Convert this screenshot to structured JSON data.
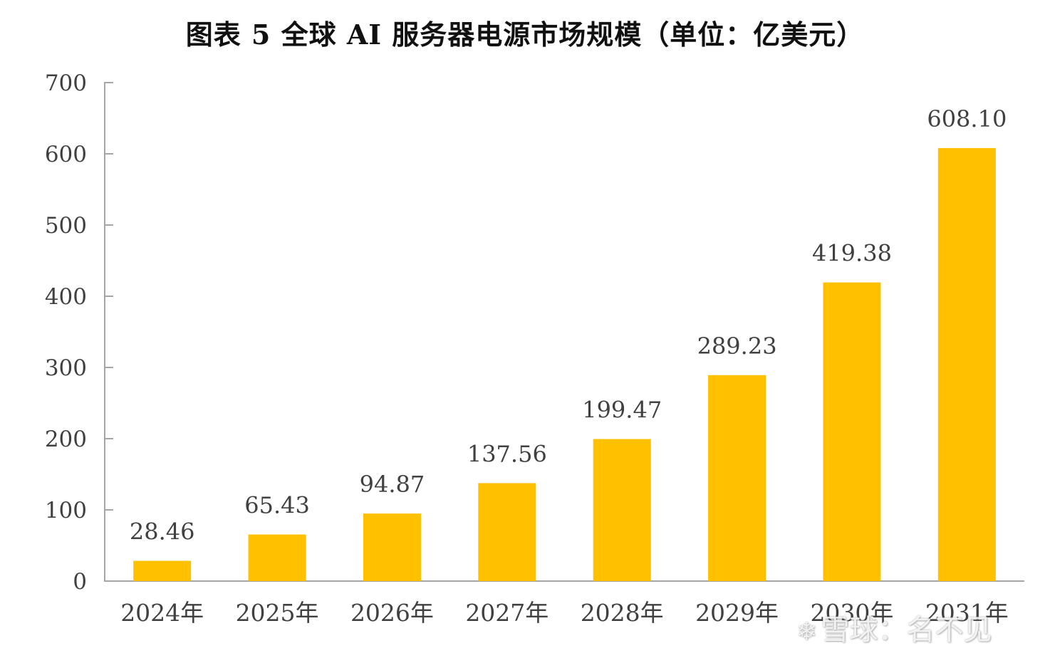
{
  "chart_data": {
    "type": "bar",
    "title": "图表 5  全球 AI 服务器电源市场规模（单位：亿美元）",
    "categories": [
      "2024年",
      "2025年",
      "2026年",
      "2027年",
      "2028年",
      "2029年",
      "2030年",
      "2031年"
    ],
    "values": [
      28.46,
      65.43,
      94.87,
      137.56,
      199.47,
      289.23,
      419.38,
      608.1
    ],
    "value_labels": [
      "28.46",
      "65.43",
      "94.87",
      "137.56",
      "199.47",
      "289.23",
      "419.38",
      "608.10"
    ],
    "ylim": [
      0,
      700
    ],
    "yticks": [
      0,
      100,
      200,
      300,
      400,
      500,
      600,
      700
    ],
    "xlabel": "",
    "ylabel": "",
    "grid": false,
    "bar_color": "#FFC000"
  },
  "watermark": {
    "logo_icon": "snowball-logo-icon",
    "text": "雪球：名不见"
  }
}
